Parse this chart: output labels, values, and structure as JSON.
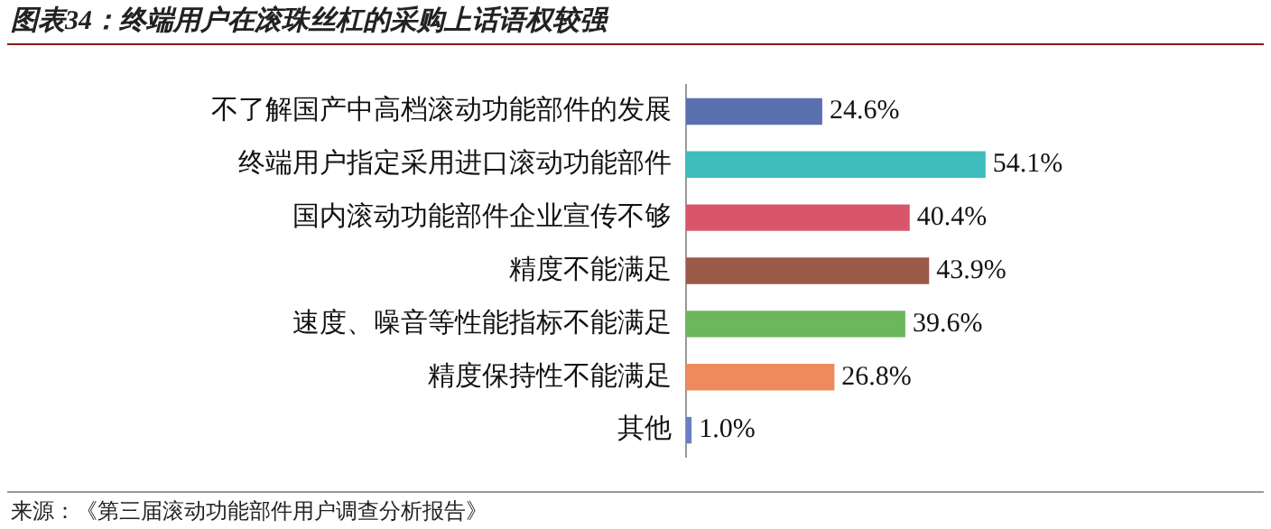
{
  "chart_data": {
    "type": "bar",
    "orientation": "horizontal",
    "title": "图表34：终端用户在滚珠丝杠的采购上话语权较强",
    "categories": [
      "不了解国产中高档滚动功能部件的发展",
      "终端用户指定采用进口滚动功能部件",
      "国内滚动功能部件企业宣传不够",
      "精度不能满足",
      "速度、噪音等性能指标不能满足",
      "精度保持性不能满足",
      "其他"
    ],
    "values": [
      24.6,
      54.1,
      40.4,
      43.9,
      39.6,
      26.8,
      1.0
    ],
    "colors": [
      "#5a6fae",
      "#3fbcbc",
      "#d9566a",
      "#9a5a4a",
      "#6cb65c",
      "#ee8a5c",
      "#6a80c4"
    ],
    "value_labels": [
      "24.6%",
      "54.1%",
      "40.4%",
      "43.9%",
      "39.6%",
      "26.8%",
      "1.0%"
    ],
    "tick_labels": "y",
    "legend": false,
    "annotations": [
      "来源：《第三届滚动功能部件用户调查分析报告》"
    ]
  }
}
